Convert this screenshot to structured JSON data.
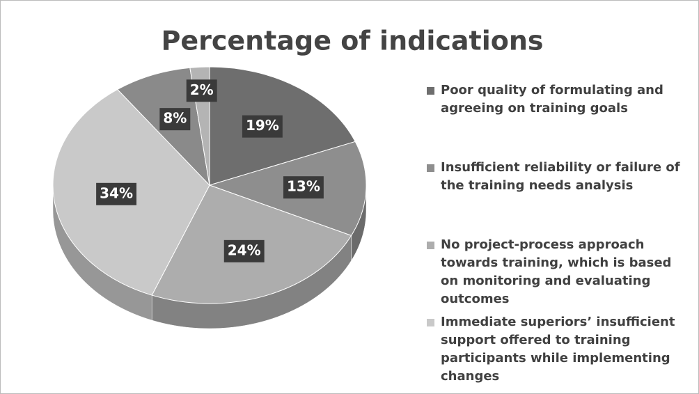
{
  "chart_data": {
    "type": "pie",
    "title": "Percentage of indications",
    "categories": [
      "Poor quality of formulating and agreeing on training goals",
      "Insufficient reliability or failure of the training needs analysis",
      "No project-process approach towards training, which is based on monitoring and evaluating outcomes",
      "Immediate superiors’ insufficient support offered to training participants while implementing changes",
      null,
      null
    ],
    "values": [
      19,
      13,
      24,
      34,
      8,
      2
    ],
    "value_labels": [
      "19%",
      "13%",
      "24%",
      "34%",
      "8%",
      "2%"
    ],
    "colors": [
      "#6e6e6e",
      "#8e8e8e",
      "#adadad",
      "#c9c9c9",
      "#8a8a8a",
      "#b4b4b4"
    ],
    "legend": "right"
  }
}
